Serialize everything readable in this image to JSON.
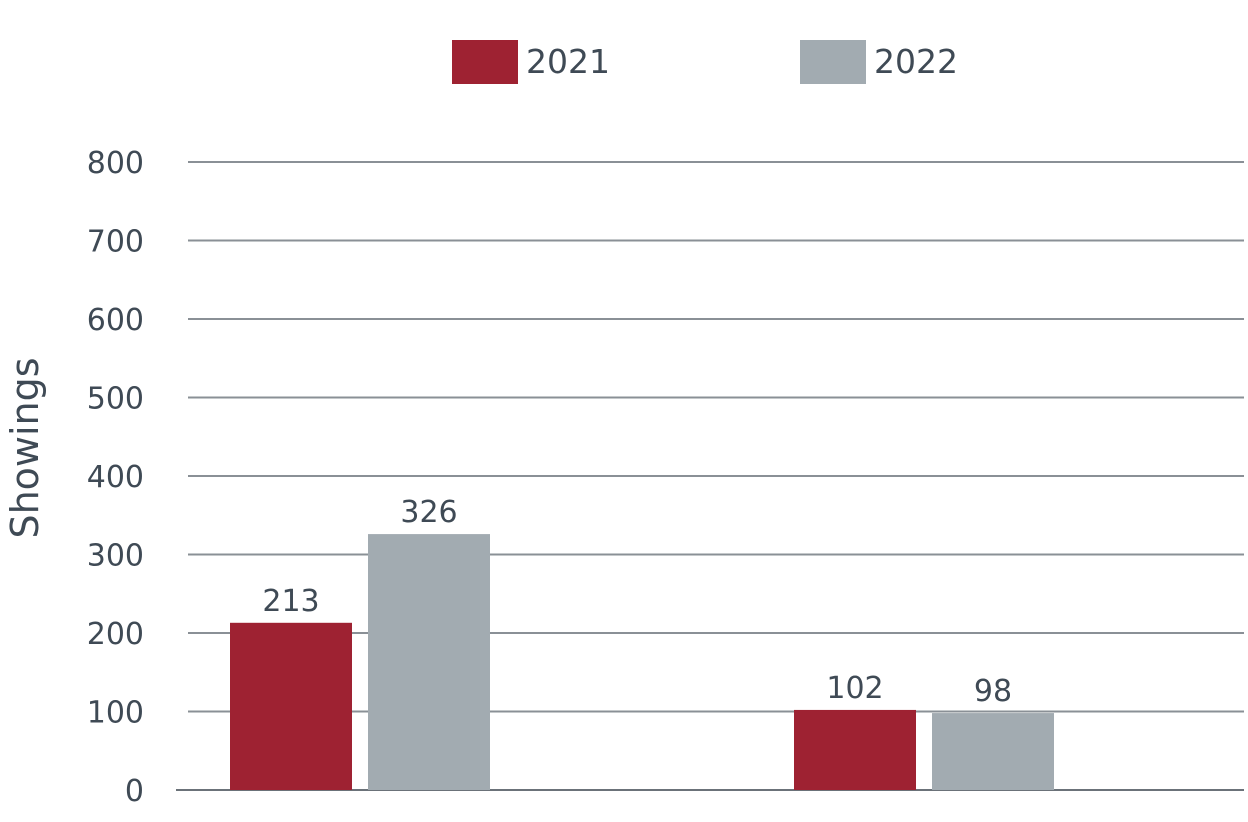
{
  "chart_data": {
    "type": "bar",
    "categories": [
      "",
      ""
    ],
    "series": [
      {
        "name": "2021",
        "color": "#9e2232",
        "values": [
          213,
          102
        ],
        "labels": [
          "213",
          "102"
        ]
      },
      {
        "name": "2022",
        "color": "#a2abb1",
        "values": [
          326,
          98
        ],
        "labels": [
          "326",
          "98"
        ]
      }
    ],
    "ylabel": "Showings",
    "xlabel": "",
    "ylim": [
      0,
      800
    ],
    "yticks": [
      0,
      100,
      200,
      300,
      400,
      500,
      600,
      700,
      800
    ],
    "grid": true,
    "legend_position": "top"
  }
}
